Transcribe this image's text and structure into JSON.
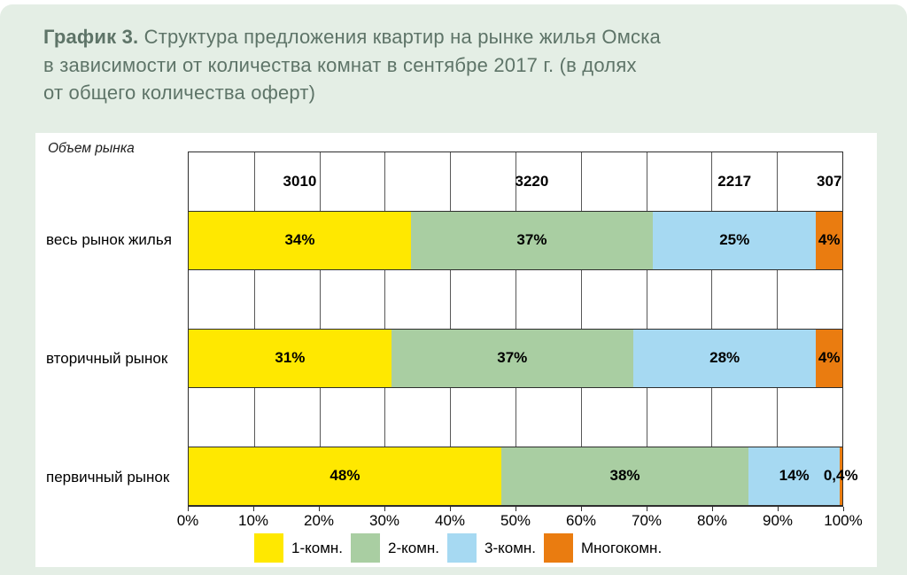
{
  "title": {
    "bold": "График 3.",
    "line1_rest": "Структура предложения квартир на рынке жилья Омска",
    "line2": "в зависимости от количества комнат в сентябре 2017 г. (в долях",
    "line3": "от общего количества оферт)"
  },
  "chart_data": {
    "type": "bar",
    "orientation": "horizontal_stacked",
    "corner_label": "Объем рынка",
    "categories": [
      "весь рынок жилья",
      "вторичный рынок",
      "первичный рынок"
    ],
    "series": [
      {
        "name": "1-комн.",
        "color": "#ffe800",
        "values": [
          34,
          31,
          48
        ]
      },
      {
        "name": "2-комн.",
        "color": "#a9cea2",
        "values": [
          37,
          37,
          38
        ]
      },
      {
        "name": "3-комн.",
        "color": "#a6d9f2",
        "values": [
          25,
          28,
          14
        ]
      },
      {
        "name": "Многокомн.",
        "color": "#ea7c10",
        "values": [
          4,
          4,
          0.4
        ]
      }
    ],
    "segment_labels": [
      [
        "34%",
        "37%",
        "25%",
        "4%"
      ],
      [
        "31%",
        "37%",
        "28%",
        "4%"
      ],
      [
        "48%",
        "38%",
        "14%",
        "0,4%"
      ]
    ],
    "counts_row": {
      "category": "весь рынок жилья",
      "values": [
        "3010",
        "3220",
        "2217",
        "307"
      ]
    },
    "x_ticks": [
      "0%",
      "10%",
      "20%",
      "30%",
      "40%",
      "50%",
      "60%",
      "70%",
      "80%",
      "90%",
      "100%"
    ],
    "xlim": [
      0,
      100
    ],
    "grid": "vertical",
    "legend_position": "bottom"
  },
  "colors": {
    "page_background": "#e4eee5",
    "card_background": "#ffffff",
    "title_text": "#5e7468",
    "plot_border": "#2e2e2e",
    "gridline": "#585858"
  }
}
